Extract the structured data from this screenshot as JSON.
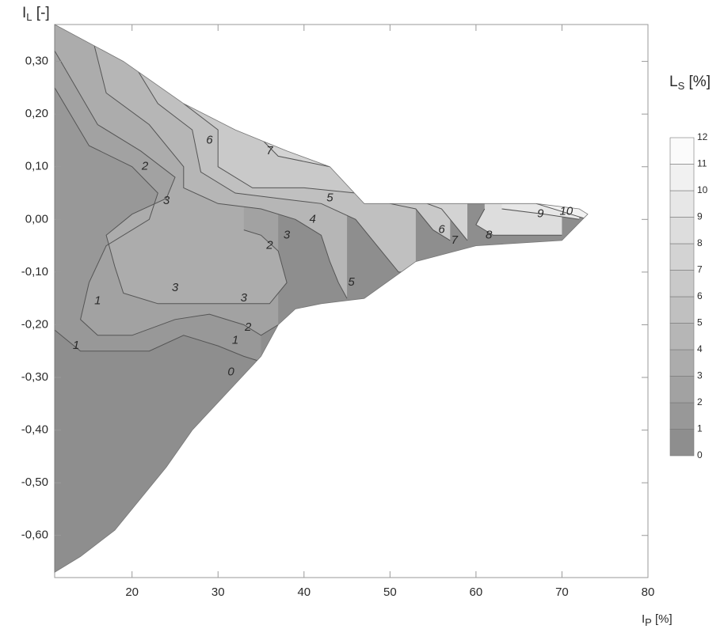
{
  "chart_data": {
    "type": "contour",
    "x_axis": {
      "label": "I",
      "label_sub": "P",
      "label_unit": " [%]",
      "range": [
        11,
        80
      ],
      "ticks": [
        20,
        30,
        40,
        50,
        60,
        70,
        80
      ],
      "tick_labels": [
        "20",
        "30",
        "40",
        "50",
        "60",
        "70",
        "80"
      ]
    },
    "y_axis": {
      "label": "I",
      "label_sub": "L",
      "label_unit": " [-]",
      "range": [
        -0.68,
        0.37
      ],
      "ticks": [
        0.3,
        0.2,
        0.1,
        0.0,
        -0.1,
        -0.2,
        -0.3,
        -0.4,
        -0.5,
        -0.6
      ],
      "tick_labels": [
        "0,30",
        "0,20",
        "0,10",
        "0,00",
        "-0,10",
        "-0,20",
        "-0,30",
        "-0,40",
        "-0,50",
        "-0,60"
      ]
    },
    "colorbar": {
      "title": "L",
      "title_sub": "S",
      "title_unit": " [%]",
      "levels": [
        0,
        1,
        2,
        3,
        4,
        5,
        6,
        7,
        8,
        9,
        10,
        11,
        12
      ],
      "level_labels": [
        "0",
        "1",
        "2",
        "3",
        "4",
        "5",
        "6",
        "7",
        "8",
        "9",
        "10",
        "11",
        "12"
      ]
    },
    "data_region": [
      [
        11,
        0.37
      ],
      [
        19,
        0.3
      ],
      [
        26,
        0.22
      ],
      [
        32,
        0.17
      ],
      [
        38,
        0.13
      ],
      [
        43,
        0.1
      ],
      [
        47,
        0.03
      ],
      [
        53,
        0.03
      ],
      [
        60,
        0.03
      ],
      [
        67,
        0.03
      ],
      [
        72,
        0.02
      ],
      [
        73,
        0.01
      ],
      [
        70,
        -0.04
      ],
      [
        60,
        -0.05
      ],
      [
        53,
        -0.08
      ],
      [
        47,
        -0.15
      ],
      [
        42,
        -0.16
      ],
      [
        39,
        -0.17
      ],
      [
        37,
        -0.2
      ],
      [
        35,
        -0.26
      ],
      [
        31,
        -0.33
      ],
      [
        27,
        -0.4
      ],
      [
        24,
        -0.47
      ],
      [
        21,
        -0.53
      ],
      [
        18,
        -0.59
      ],
      [
        14,
        -0.64
      ],
      [
        11,
        -0.67
      ]
    ],
    "contours": [
      {
        "level": 1,
        "points": [
          [
            11,
            -0.21
          ],
          [
            14,
            -0.25
          ],
          [
            18,
            -0.25
          ],
          [
            22,
            -0.25
          ],
          [
            26,
            -0.22
          ],
          [
            30,
            -0.24
          ],
          [
            33,
            -0.26
          ],
          [
            35,
            -0.27
          ]
        ]
      },
      {
        "level": 2,
        "points": [
          [
            11,
            0.25
          ],
          [
            15,
            0.14
          ],
          [
            20,
            0.1
          ],
          [
            23,
            0.05
          ],
          [
            22,
            0.0
          ],
          [
            17,
            -0.05
          ],
          [
            15,
            -0.12
          ],
          [
            14,
            -0.19
          ],
          [
            16,
            -0.22
          ],
          [
            20,
            -0.22
          ],
          [
            25,
            -0.19
          ],
          [
            29,
            -0.18
          ],
          [
            33,
            -0.2
          ],
          [
            35,
            -0.22
          ],
          [
            37,
            -0.2
          ]
        ]
      },
      {
        "level": 3,
        "points": [
          [
            11,
            0.32
          ],
          [
            16,
            0.18
          ],
          [
            21,
            0.13
          ],
          [
            25,
            0.08
          ],
          [
            24,
            0.04
          ],
          [
            20,
            0.01
          ],
          [
            17,
            -0.03
          ],
          [
            18,
            -0.09
          ],
          [
            19,
            -0.14
          ],
          [
            23,
            -0.16
          ],
          [
            27,
            -0.16
          ],
          [
            31,
            -0.16
          ],
          [
            36,
            -0.16
          ],
          [
            38,
            -0.12
          ],
          [
            37,
            -0.06
          ],
          [
            35,
            -0.03
          ],
          [
            33,
            -0.02
          ]
        ]
      },
      {
        "level": 4,
        "points": [
          [
            15,
            0.37
          ],
          [
            17,
            0.24
          ],
          [
            22,
            0.18
          ],
          [
            26,
            0.1
          ],
          [
            26,
            0.06
          ],
          [
            30,
            0.03
          ],
          [
            35,
            0.02
          ],
          [
            39,
            0.0
          ],
          [
            42,
            -0.03
          ],
          [
            43,
            -0.08
          ],
          [
            44,
            -0.12
          ],
          [
            45,
            -0.15
          ]
        ]
      },
      {
        "level": 5,
        "points": [
          [
            20,
            0.3
          ],
          [
            23,
            0.22
          ],
          [
            27,
            0.17
          ],
          [
            28,
            0.09
          ],
          [
            32,
            0.05
          ],
          [
            37,
            0.04
          ],
          [
            42,
            0.03
          ],
          [
            46,
            0.0
          ],
          [
            49,
            -0.06
          ],
          [
            51,
            -0.1
          ],
          [
            53,
            -0.1
          ]
        ]
      },
      {
        "level": 6,
        "points": [
          [
            23,
            0.3
          ],
          [
            26,
            0.22
          ],
          [
            30,
            0.17
          ],
          [
            30,
            0.1
          ],
          [
            34,
            0.06
          ],
          [
            40,
            0.06
          ],
          [
            46,
            0.05
          ],
          [
            50,
            0.03
          ],
          [
            53,
            0.02
          ],
          [
            55,
            -0.02
          ],
          [
            57,
            -0.04
          ]
        ]
      },
      {
        "level": 7,
        "points": [
          [
            25,
            0.28
          ],
          [
            29,
            0.21
          ],
          [
            34,
            0.17
          ],
          [
            37,
            0.12
          ],
          [
            43,
            0.1
          ],
          [
            46,
            0.08
          ],
          [
            56,
            0.02
          ],
          [
            58,
            -0.02
          ],
          [
            59,
            -0.04
          ]
        ]
      },
      {
        "level": 8,
        "points": [
          [
            61,
            0.02
          ],
          [
            60,
            -0.01
          ],
          [
            62,
            -0.03
          ],
          [
            66,
            -0.03
          ],
          [
            70,
            -0.03
          ]
        ]
      },
      {
        "level": 9,
        "points": [
          [
            63,
            0.02
          ],
          [
            68,
            0.01
          ],
          [
            72,
            0.0
          ]
        ]
      },
      {
        "level": 10,
        "points": [
          [
            67,
            0.03
          ],
          [
            71,
            0.01
          ],
          [
            73,
            0.0
          ]
        ]
      }
    ],
    "contour_labels": [
      {
        "text": "0",
        "x": 31.5,
        "y": -0.29
      },
      {
        "text": "1",
        "x": 16,
        "y": -0.155
      },
      {
        "text": "1",
        "x": 13.5,
        "y": -0.24
      },
      {
        "text": "1",
        "x": 32,
        "y": -0.23
      },
      {
        "text": "2",
        "x": 21.5,
        "y": 0.1
      },
      {
        "text": "2",
        "x": 33.5,
        "y": -0.205
      },
      {
        "text": "2",
        "x": 36,
        "y": -0.05
      },
      {
        "text": "3",
        "x": 24,
        "y": 0.035
      },
      {
        "text": "3",
        "x": 38,
        "y": -0.03
      },
      {
        "text": "3",
        "x": 25,
        "y": -0.13
      },
      {
        "text": "3",
        "x": 33,
        "y": -0.15
      },
      {
        "text": "4",
        "x": 41,
        "y": 0.0
      },
      {
        "text": "5",
        "x": 43,
        "y": 0.04
      },
      {
        "text": "5",
        "x": 45.5,
        "y": -0.12
      },
      {
        "text": "6",
        "x": 29,
        "y": 0.15
      },
      {
        "text": "6",
        "x": 56,
        "y": -0.02
      },
      {
        "text": "7",
        "x": 36,
        "y": 0.13
      },
      {
        "text": "7",
        "x": 57.5,
        "y": -0.04
      },
      {
        "text": "8",
        "x": 61.5,
        "y": -0.03
      },
      {
        "text": "9",
        "x": 67.5,
        "y": 0.01
      },
      {
        "text": "10",
        "x": 70.5,
        "y": 0.015
      }
    ],
    "grid": false,
    "legend_placement": "right"
  }
}
